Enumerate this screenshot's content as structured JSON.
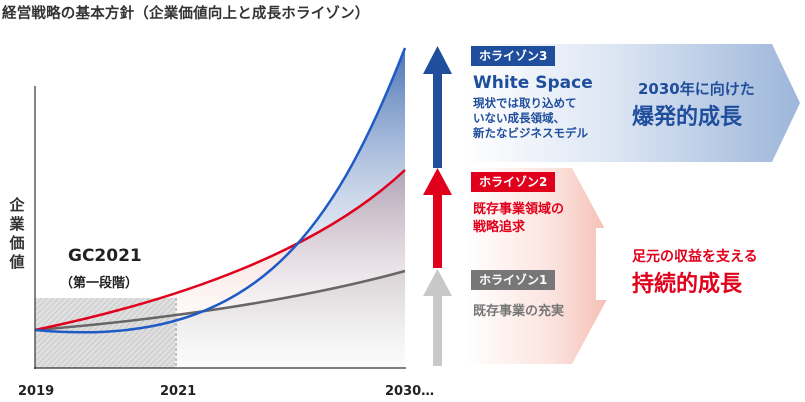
{
  "title": "経営戦略の基本方針（企業価値向上と成長ホライゾン）",
  "y_axis_label": "企業価値",
  "x_ticks": [
    "2019",
    "2021",
    "2030…"
  ],
  "gc": {
    "title": "GC2021",
    "subtitle": "（第一段階）"
  },
  "horizons": {
    "h3": {
      "badge": "ホライゾン3",
      "heading": "White Space",
      "description": "現状では取り込めて\nいない成長領域、\n新たなビジネスモデル",
      "goal_small": "2030年に向けた",
      "goal_big": "爆発的成長",
      "color": "#1f4e9c"
    },
    "h2": {
      "badge": "ホライゾン2",
      "description": "既存事業領域の\n戦略追求",
      "color": "#e0001b"
    },
    "h1": {
      "badge": "ホライゾン1",
      "description": "既存事業の充実",
      "color": "#777777"
    },
    "revenue": {
      "small": "足元の収益を支える",
      "big": "持続的成長",
      "color": "#e0001b"
    }
  }
}
